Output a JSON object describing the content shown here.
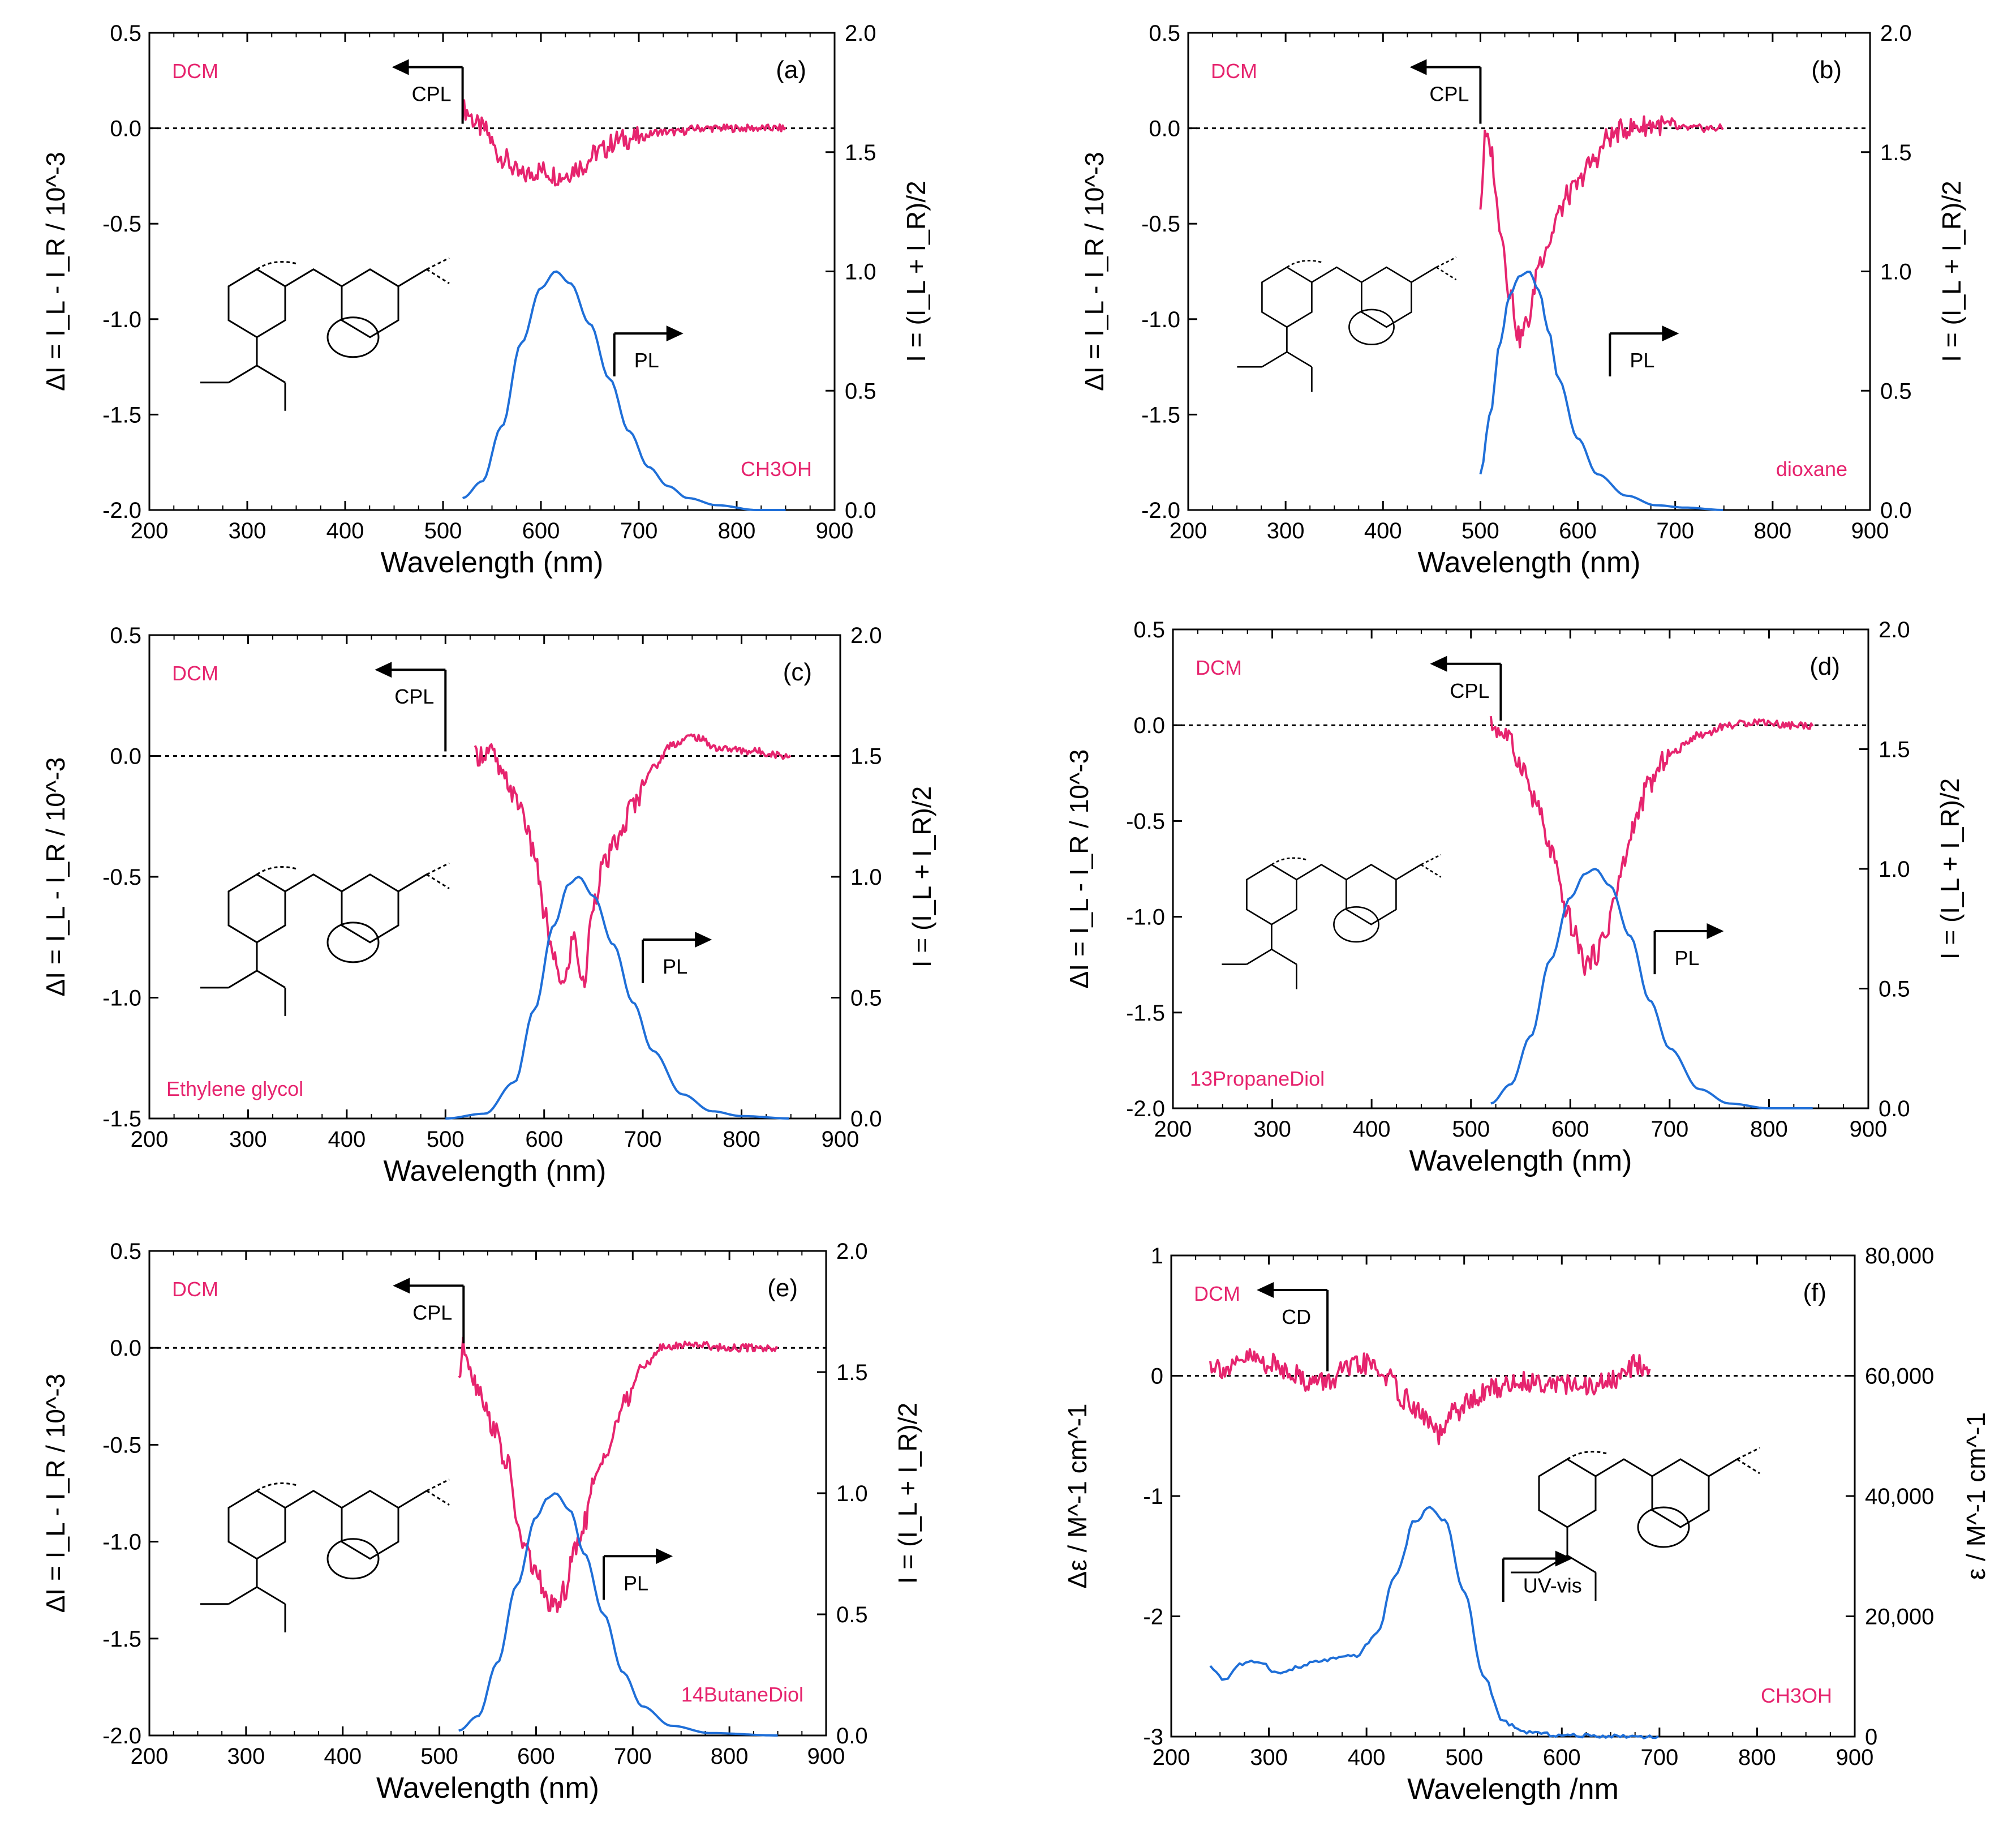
{
  "chart_data": [
    {
      "id": "a",
      "type": "line",
      "panel_label": "(a)",
      "reference_solvent": "DCM",
      "solvent": "CH3OH",
      "xlabel": "Wavelength (nm)",
      "ylabel_left": "ΔI = I_L - I_R / 10^-3",
      "ylabel_right": "I = (I_L + I_R)/2",
      "xlim": [
        200,
        900
      ],
      "ylim_left": [
        -2.0,
        0.5
      ],
      "ylim_right": [
        0.0,
        2.0
      ],
      "x_ticks": [
        "200",
        "300",
        "400",
        "500",
        "600",
        "700",
        "800",
        "900"
      ],
      "yleft_ticks": [
        "-2.0",
        "-1.5",
        "-1.0",
        "-0.5",
        "0.0",
        "0.5"
      ],
      "yright_ticks": [
        "0.0",
        "0.5",
        "1.0",
        "1.5",
        "2.0"
      ],
      "zero_line_left": 0.0,
      "cpl_arrow": {
        "label": "CPL",
        "x": 520,
        "direction": "left"
      },
      "pl_arrow": {
        "label": "PL",
        "x": 675,
        "direction": "right"
      },
      "series": [
        {
          "name": "CPL",
          "axis": "left",
          "color": "#e6246e",
          "x": [
            520,
            540,
            560,
            580,
            600,
            620,
            640,
            660,
            680,
            700,
            720,
            740,
            760,
            780,
            800,
            820,
            850
          ],
          "y": [
            0.1,
            0.0,
            -0.15,
            -0.25,
            -0.22,
            -0.25,
            -0.2,
            -0.12,
            -0.06,
            -0.05,
            -0.02,
            -0.02,
            0.0,
            0.0,
            0.0,
            0.0,
            0.0
          ]
        },
        {
          "name": "PL",
          "axis": "right",
          "color": "#1f6fd8",
          "x": [
            520,
            540,
            560,
            580,
            600,
            615,
            630,
            650,
            670,
            690,
            710,
            730,
            750,
            780,
            820,
            850
          ],
          "y": [
            0.05,
            0.12,
            0.35,
            0.7,
            0.93,
            1.0,
            0.95,
            0.78,
            0.55,
            0.33,
            0.18,
            0.1,
            0.05,
            0.02,
            0.0,
            0.0
          ]
        }
      ]
    },
    {
      "id": "b",
      "type": "line",
      "panel_label": "(b)",
      "reference_solvent": "DCM",
      "solvent": "dioxane",
      "xlabel": "Wavelength (nm)",
      "ylabel_left": "ΔI = I_L - I_R / 10^-3",
      "ylabel_right": "I = (I_L + I_R)/2",
      "xlim": [
        200,
        900
      ],
      "ylim_left": [
        -2.0,
        0.5
      ],
      "ylim_right": [
        0.0,
        2.0
      ],
      "x_ticks": [
        "200",
        "300",
        "400",
        "500",
        "600",
        "700",
        "800",
        "900"
      ],
      "yleft_ticks": [
        "-2.0",
        "-1.5",
        "-1.0",
        "-0.5",
        "0.0",
        "0.5"
      ],
      "yright_ticks": [
        "0.0",
        "0.5",
        "1.0",
        "1.5",
        "2.0"
      ],
      "zero_line_left": 0.0,
      "cpl_arrow": {
        "label": "CPL",
        "x": 500,
        "direction": "left"
      },
      "pl_arrow": {
        "label": "PL",
        "x": 633,
        "direction": "right"
      },
      "series": [
        {
          "name": "CPL",
          "axis": "left",
          "color": "#e6246e",
          "x": [
            500,
            505,
            510,
            520,
            530,
            540,
            550,
            560,
            570,
            580,
            590,
            600,
            610,
            620,
            630,
            650,
            680,
            700,
            720,
            750
          ],
          "y": [
            -0.4,
            -0.05,
            -0.1,
            -0.5,
            -0.85,
            -1.1,
            -1.0,
            -0.7,
            -0.6,
            -0.45,
            -0.35,
            -0.3,
            -0.2,
            -0.15,
            -0.05,
            0.0,
            0.02,
            0.0,
            0.0,
            0.0
          ]
        },
        {
          "name": "PL",
          "axis": "right",
          "color": "#1f6fd8",
          "x": [
            500,
            510,
            520,
            530,
            540,
            550,
            560,
            570,
            580,
            600,
            620,
            650,
            680,
            710,
            750
          ],
          "y": [
            0.15,
            0.4,
            0.7,
            0.9,
            0.98,
            1.0,
            0.92,
            0.75,
            0.55,
            0.3,
            0.15,
            0.06,
            0.02,
            0.01,
            0.0
          ]
        }
      ]
    },
    {
      "id": "c",
      "type": "line",
      "panel_label": "(c)",
      "reference_solvent": "DCM",
      "solvent": "Ethylene glycol",
      "xlabel": "Wavelength (nm)",
      "ylabel_left": "ΔI = I_L - I_R / 10^-3",
      "ylabel_right": "I = (I_L + I_R)/2",
      "xlim": [
        200,
        900
      ],
      "ylim_left": [
        -1.5,
        0.5
      ],
      "ylim_right": [
        0.0,
        2.0
      ],
      "x_ticks": [
        "200",
        "300",
        "400",
        "500",
        "600",
        "700",
        "800",
        "900"
      ],
      "yleft_ticks": [
        "-1.5",
        "-1.0",
        "-0.5",
        "0.0",
        "0.5"
      ],
      "yright_ticks": [
        "0.0",
        "0.5",
        "1.0",
        "1.5",
        "2.0"
      ],
      "zero_line_left": 0.0,
      "cpl_arrow": {
        "label": "CPL",
        "x": 500,
        "direction": "left"
      },
      "pl_arrow": {
        "label": "PL",
        "x": 700,
        "direction": "right"
      },
      "series": [
        {
          "name": "CPL",
          "axis": "left",
          "color": "#e6246e",
          "x": [
            530,
            545,
            560,
            575,
            590,
            600,
            610,
            620,
            630,
            640,
            650,
            660,
            675,
            690,
            710,
            730,
            750,
            780,
            810,
            850
          ],
          "y": [
            0.0,
            0.02,
            -0.1,
            -0.2,
            -0.4,
            -0.65,
            -0.85,
            -0.95,
            -0.75,
            -0.95,
            -0.6,
            -0.45,
            -0.35,
            -0.2,
            -0.05,
            0.05,
            0.08,
            0.03,
            0.02,
            0.0
          ]
        },
        {
          "name": "PL",
          "axis": "right",
          "color": "#1f6fd8",
          "x": [
            500,
            540,
            570,
            590,
            610,
            625,
            635,
            650,
            670,
            690,
            710,
            740,
            770,
            800,
            850
          ],
          "y": [
            0.0,
            0.02,
            0.15,
            0.45,
            0.8,
            0.97,
            1.0,
            0.92,
            0.72,
            0.48,
            0.28,
            0.1,
            0.03,
            0.01,
            0.0
          ]
        }
      ]
    },
    {
      "id": "d",
      "type": "line",
      "panel_label": "(d)",
      "reference_solvent": "DCM",
      "solvent": "13PropaneDiol",
      "xlabel": "Wavelength (nm)",
      "ylabel_left": "ΔI = I_L - I_R / 10^-3",
      "ylabel_right": "I = (I_L + I_R)/2",
      "xlim": [
        200,
        900
      ],
      "ylim_left": [
        -2.0,
        0.5
      ],
      "ylim_right": [
        0.0,
        2.0
      ],
      "x_ticks": [
        "200",
        "300",
        "400",
        "500",
        "600",
        "700",
        "800",
        "900"
      ],
      "yleft_ticks": [
        "-2.0",
        "-1.5",
        "-1.0",
        "-0.5",
        "0.0",
        "0.5"
      ],
      "yright_ticks": [
        "0.0",
        "0.5",
        "1.0",
        "1.5",
        "2.0"
      ],
      "zero_line_left": 0.0,
      "cpl_arrow": {
        "label": "CPL",
        "x": 530,
        "direction": "left"
      },
      "pl_arrow": {
        "label": "PL",
        "x": 685,
        "direction": "right"
      },
      "series": [
        {
          "name": "CPL",
          "axis": "left",
          "color": "#e6246e",
          "x": [
            520,
            535,
            550,
            565,
            580,
            595,
            605,
            615,
            625,
            635,
            645,
            655,
            665,
            680,
            700,
            730,
            760,
            790,
            820,
            845
          ],
          "y": [
            0.0,
            -0.05,
            -0.2,
            -0.4,
            -0.65,
            -0.95,
            -1.1,
            -1.25,
            -1.2,
            -1.1,
            -0.9,
            -0.7,
            -0.5,
            -0.3,
            -0.15,
            -0.05,
            0.0,
            0.02,
            0.0,
            0.0
          ]
        },
        {
          "name": "PL",
          "axis": "right",
          "color": "#1f6fd8",
          "x": [
            520,
            540,
            560,
            580,
            600,
            615,
            625,
            640,
            660,
            680,
            700,
            730,
            760,
            800,
            845
          ],
          "y": [
            0.02,
            0.1,
            0.3,
            0.62,
            0.88,
            0.98,
            1.0,
            0.93,
            0.72,
            0.45,
            0.25,
            0.08,
            0.02,
            0.0,
            0.0
          ]
        }
      ]
    },
    {
      "id": "e",
      "type": "line",
      "panel_label": "(e)",
      "reference_solvent": "DCM",
      "solvent": "14ButaneDiol",
      "xlabel": "Wavelength (nm)",
      "ylabel_left": "ΔI = I_L - I_R / 10^-3",
      "ylabel_right": "I = (I_L + I_R)/2",
      "xlim": [
        200,
        900
      ],
      "ylim_left": [
        -2.0,
        0.5
      ],
      "ylim_right": [
        0.0,
        2.0
      ],
      "x_ticks": [
        "200",
        "300",
        "400",
        "500",
        "600",
        "700",
        "800",
        "900"
      ],
      "yleft_ticks": [
        "-2.0",
        "-1.5",
        "-1.0",
        "-0.5",
        "0.0",
        "0.5"
      ],
      "yright_ticks": [
        "0.0",
        "0.5",
        "1.0",
        "1.5",
        "2.0"
      ],
      "zero_line_left": 0.0,
      "cpl_arrow": {
        "label": "CPL",
        "x": 525,
        "direction": "left"
      },
      "pl_arrow": {
        "label": "PL",
        "x": 670,
        "direction": "right"
      },
      "series": [
        {
          "name": "CPL",
          "axis": "left",
          "color": "#e6246e",
          "x": [
            520,
            525,
            540,
            555,
            570,
            585,
            600,
            610,
            620,
            630,
            640,
            650,
            660,
            675,
            690,
            710,
            730,
            760,
            800,
            850
          ],
          "y": [
            -0.15,
            0.0,
            -0.2,
            -0.4,
            -0.6,
            -1.0,
            -1.15,
            -1.3,
            -1.35,
            -1.25,
            -1.05,
            -0.9,
            -0.7,
            -0.5,
            -0.3,
            -0.1,
            0.0,
            0.02,
            0.0,
            0.0
          ]
        },
        {
          "name": "PL",
          "axis": "right",
          "color": "#1f6fd8",
          "x": [
            520,
            540,
            560,
            580,
            600,
            612,
            620,
            635,
            650,
            670,
            690,
            710,
            740,
            780,
            850
          ],
          "y": [
            0.02,
            0.08,
            0.3,
            0.62,
            0.9,
            0.98,
            1.0,
            0.93,
            0.75,
            0.5,
            0.26,
            0.12,
            0.04,
            0.01,
            0.0
          ]
        }
      ]
    },
    {
      "id": "f",
      "type": "line",
      "panel_label": "(f)",
      "reference_solvent": "DCM",
      "solvent": "CH3OH",
      "xlabel": "Wavelength /nm",
      "ylabel_left": "Δε / M^-1 cm^-1",
      "ylabel_right": "ε / M^-1 cm^-1",
      "xlim": [
        200,
        900
      ],
      "ylim_left": [
        -3,
        1
      ],
      "ylim_right": [
        0,
        80000
      ],
      "x_ticks": [
        "200",
        "300",
        "400",
        "500",
        "600",
        "700",
        "800",
        "900"
      ],
      "yleft_ticks": [
        "-3",
        "-2",
        "-1",
        "0",
        "1"
      ],
      "yright_ticks": [
        "0",
        "20,000",
        "40,000",
        "60,000",
        "80,000"
      ],
      "zero_line_left": 0.0,
      "cpl_arrow": {
        "label": "CD",
        "x": 360,
        "direction": "left"
      },
      "pl_arrow": {
        "label": "UV-vis",
        "x": 540,
        "direction": "right"
      },
      "series": [
        {
          "name": "CD",
          "axis": "left",
          "color": "#e6246e",
          "x": [
            240,
            260,
            280,
            300,
            320,
            340,
            360,
            380,
            400,
            420,
            440,
            460,
            475,
            490,
            510,
            530,
            560,
            590,
            620,
            650,
            680,
            690
          ],
          "y": [
            0.1,
            0.05,
            0.15,
            0.1,
            0.05,
            -0.05,
            -0.05,
            0.05,
            0.1,
            0.0,
            -0.2,
            -0.35,
            -0.5,
            -0.3,
            -0.2,
            -0.1,
            -0.05,
            -0.05,
            -0.1,
            -0.05,
            0.1,
            0.05
          ]
        },
        {
          "name": "UV-vis",
          "axis": "right",
          "color": "#1f6fd8",
          "x": [
            240,
            255,
            270,
            290,
            310,
            330,
            350,
            370,
            390,
            410,
            430,
            450,
            465,
            480,
            500,
            520,
            540,
            560,
            600,
            650,
            700
          ],
          "y": [
            11500,
            9500,
            12000,
            12500,
            10500,
            11500,
            12500,
            13000,
            13500,
            17000,
            27000,
            36000,
            38000,
            36000,
            24000,
            10000,
            2500,
            800,
            200,
            100,
            0
          ]
        }
      ]
    }
  ]
}
